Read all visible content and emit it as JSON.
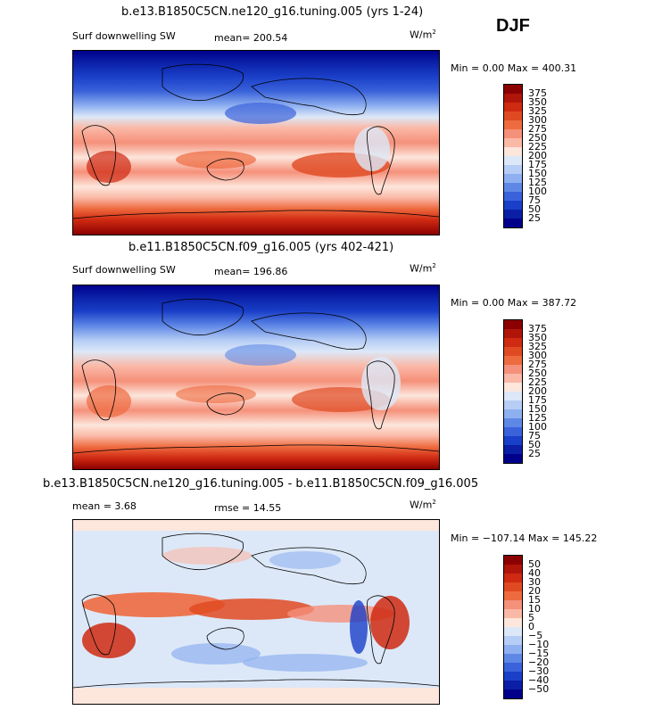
{
  "season": "DJF",
  "panels": [
    {
      "title": "b.e13.B1850C5CN.ne120_g16.tuning.005 (yrs 1-24)",
      "left_label": "Surf downwelling SW",
      "mean_label": "mean= 200.54",
      "units": "W/m",
      "units_sup": "2",
      "minmax": "Min =   0.00 Max = 400.31",
      "levels": [
        "375",
        "350",
        "325",
        "300",
        "275",
        "250",
        "225",
        "200",
        "175",
        "150",
        "125",
        "100",
        "75",
        "50",
        "25"
      ],
      "colors": [
        "#8b0000",
        "#b0150a",
        "#cf2a12",
        "#e04a22",
        "#ee6a3f",
        "#f5907a",
        "#fab8a6",
        "#fde6dc",
        "#dce8f8",
        "#b6cdf5",
        "#8fb0f0",
        "#5f88e6",
        "#3a62da",
        "#1a3fc8",
        "#0a1fa6",
        "#00008b"
      ]
    },
    {
      "title": "b.e11.B1850C5CN.f09_g16.005 (yrs 402-421)",
      "left_label": "Surf downwelling SW",
      "mean_label": "mean= 196.86",
      "units": "W/m",
      "units_sup": "2",
      "minmax": "Min =   0.00 Max = 387.72",
      "levels": [
        "375",
        "350",
        "325",
        "300",
        "275",
        "250",
        "225",
        "200",
        "175",
        "150",
        "125",
        "100",
        "75",
        "50",
        "25"
      ],
      "colors": [
        "#8b0000",
        "#b0150a",
        "#cf2a12",
        "#e04a22",
        "#ee6a3f",
        "#f5907a",
        "#fab8a6",
        "#fde6dc",
        "#dce8f8",
        "#b6cdf5",
        "#8fb0f0",
        "#5f88e6",
        "#3a62da",
        "#1a3fc8",
        "#0a1fa6",
        "#00008b"
      ]
    },
    {
      "title": "b.e13.B1850C5CN.ne120_g16.tuning.005 - b.e11.B1850C5CN.f09_g16.005",
      "left_label": "mean =    3.68",
      "mean_label": "rmse =   14.55",
      "units": "W/m",
      "units_sup": "2",
      "minmax": "Min = −107.14 Max = 145.22",
      "levels": [
        "50",
        "40",
        "30",
        "20",
        "15",
        "10",
        "5",
        "0",
        "−5",
        "−10",
        "−15",
        "−20",
        "−30",
        "−40",
        "−50"
      ],
      "colors": [
        "#8b0000",
        "#b0150a",
        "#cf2a12",
        "#e04a22",
        "#ee6a3f",
        "#f5907a",
        "#fab8a6",
        "#fde6dc",
        "#dce8f8",
        "#b6cdf5",
        "#8fb0f0",
        "#5f88e6",
        "#3a62da",
        "#1a3fc8",
        "#0a1fa6",
        "#00008b"
      ]
    }
  ]
}
